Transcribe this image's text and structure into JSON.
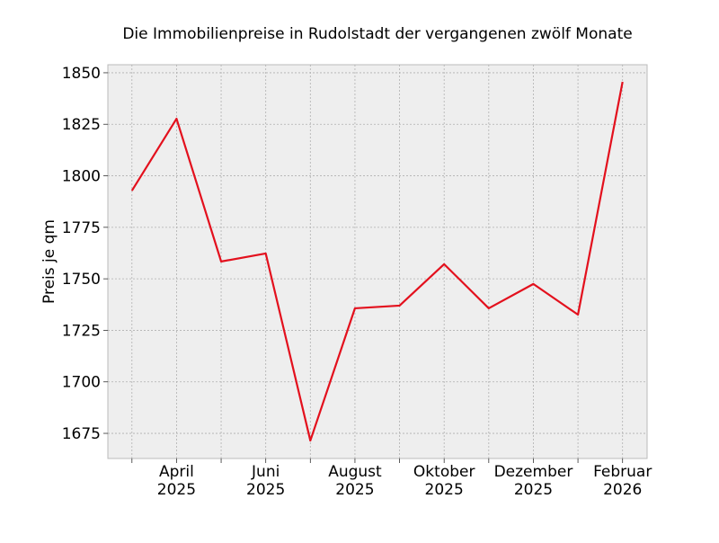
{
  "chart_data": {
    "type": "line",
    "title": "Die Immobilienpreise in Rudolstadt der vergangenen zwölf Monate",
    "xlabel": "",
    "ylabel": "Preis je qm",
    "x": [
      "2025-03",
      "2025-04",
      "2025-05",
      "2025-06",
      "2025-07",
      "2025-08",
      "2025-09",
      "2025-10",
      "2025-11",
      "2025-12",
      "2026-01",
      "2026-02"
    ],
    "x_tick_labels": [
      {
        "index": 1,
        "line1": "April",
        "line2": "2025"
      },
      {
        "index": 3,
        "line1": "Juni",
        "line2": "2025"
      },
      {
        "index": 5,
        "line1": "August",
        "line2": "2025"
      },
      {
        "index": 7,
        "line1": "Oktober",
        "line2": "2025"
      },
      {
        "index": 9,
        "line1": "Dezember",
        "line2": "2025"
      },
      {
        "index": 11,
        "line1": "Februar",
        "line2": "2026"
      }
    ],
    "series": [
      {
        "name": "Preis je qm",
        "color": "#e3101d",
        "values": [
          1792.8,
          1827.7,
          1758.4,
          1762.3,
          1671.5,
          1735.7,
          1737.0,
          1757.1,
          1735.7,
          1747.5,
          1732.6,
          1845.6
        ]
      }
    ],
    "yticks": [
      1675,
      1700,
      1725,
      1750,
      1775,
      1800,
      1825,
      1850
    ],
    "ylim": [
      1662.8,
      1853.9
    ],
    "xlim": [
      -0.54,
      11.55
    ],
    "grid": true,
    "background": "#eeeeee"
  }
}
